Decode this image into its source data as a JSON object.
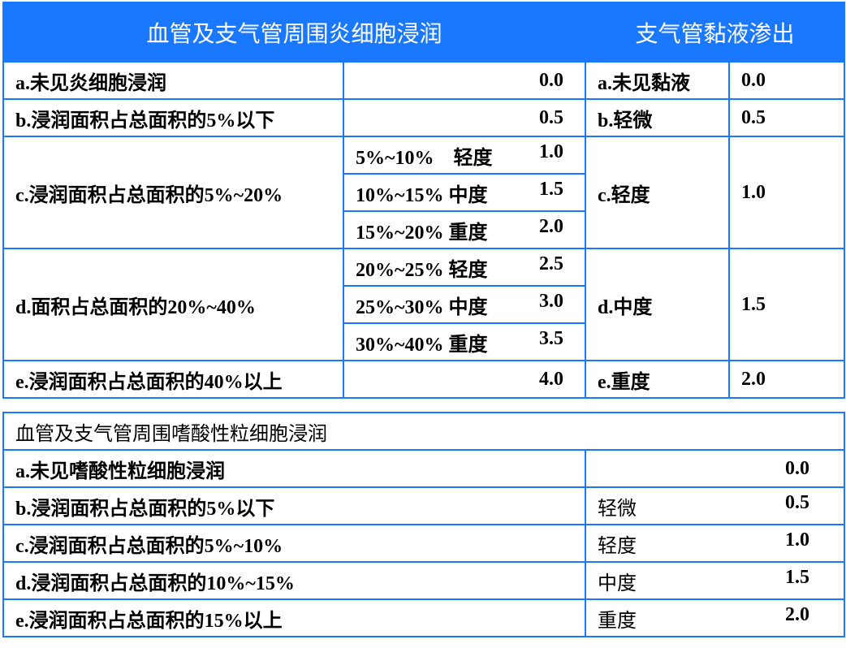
{
  "top": {
    "header": [
      "血管及支气管周围炎细胞浸润",
      "支气管黏液渗出"
    ],
    "rows": [
      {
        "label": "a.未见炎细胞浸润",
        "subs": [
          {
            "range": "",
            "value": "0.0"
          }
        ],
        "mucus": "a.未见黏液",
        "mucus_value": "0.0"
      },
      {
        "label": "b.浸润面积占总面积的5%以下",
        "subs": [
          {
            "range": "",
            "value": "0.5"
          }
        ],
        "mucus": "b.轻微",
        "mucus_value": "0.5"
      },
      {
        "label": "c.浸润面积占总面积的5%~20%",
        "subs": [
          {
            "range": "5%~10%　轻度",
            "value": "1.0"
          },
          {
            "range": "10%~15% 中度",
            "value": "1.5"
          },
          {
            "range": "15%~20% 重度",
            "value": "2.0"
          }
        ],
        "mucus": "c.轻度",
        "mucus_value": "1.0"
      },
      {
        "label": "d.面积占总面积的20%~40%",
        "subs": [
          {
            "range": "20%~25% 轻度",
            "value": "2.5"
          },
          {
            "range": "25%~30% 中度",
            "value": "3.0"
          },
          {
            "range": "30%~40% 重度",
            "value": "3.5"
          }
        ],
        "mucus": "d.中度",
        "mucus_value": "1.5"
      },
      {
        "label": "e.浸润面积占总面积的40%以上",
        "subs": [
          {
            "range": "",
            "value": "4.0"
          }
        ],
        "mucus": "e.重度",
        "mucus_value": "2.0"
      }
    ]
  },
  "bottom": {
    "title": "血管及支气管周围嗜酸性粒细胞浸润",
    "rows": [
      {
        "label": "a.未见嗜酸性粒细胞浸润",
        "grade": "",
        "value": "0.0"
      },
      {
        "label": "b.浸润面积占总面积的5%以下",
        "grade": "轻微",
        "value": "0.5"
      },
      {
        "label": "c.浸润面积占总面积的5%~10%",
        "grade": "轻度",
        "value": "1.0"
      },
      {
        "label": "d.浸润面积占总面积的10%~15%",
        "grade": "中度",
        "value": "1.5"
      },
      {
        "label": "e.浸润面积占总面积的15%以上",
        "grade": "重度",
        "value": "2.0"
      }
    ]
  },
  "colors": {
    "accent": "#1a78ff"
  }
}
